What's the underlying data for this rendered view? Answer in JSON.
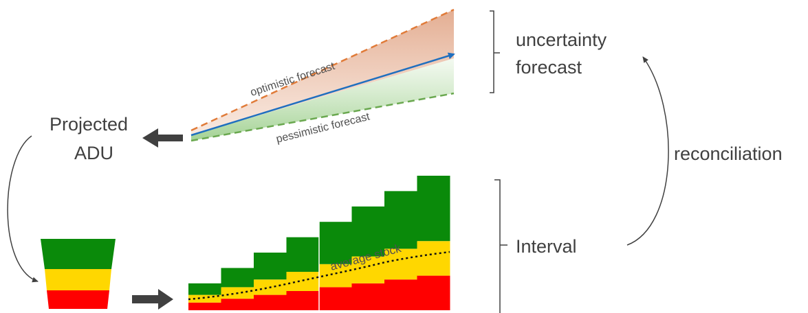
{
  "forecast": {
    "optimistic_label": "optimistic forecast",
    "pessimistic_label": "pessimistic forecast",
    "colors": {
      "optimistic": "#e07b39",
      "mean": "#1f6fbf",
      "pessimistic": "#6aa84f",
      "upper_fill": "#e8b49a",
      "lower_fill": "#b9ddb0"
    }
  },
  "labels": {
    "uncertainty_line1": "uncertainty",
    "uncertainty_line2": "forecast",
    "projected_line1": "Projected",
    "projected_line2": "ADU",
    "reconciliation": "reconciliation",
    "interval": "Interval",
    "average_stock": "average stock"
  },
  "zones": {
    "colors": {
      "green": "#0a8a0a",
      "yellow": "#ffd700",
      "red": "#ff0000"
    },
    "steps": [
      {
        "red": 1,
        "yellow": 1,
        "green": 1.5
      },
      {
        "red": 1.5,
        "yellow": 1.5,
        "green": 2.5
      },
      {
        "red": 2,
        "yellow": 2,
        "green": 3.5
      },
      {
        "red": 2.5,
        "yellow": 2.5,
        "green": 4.5
      },
      {
        "red": 3,
        "yellow": 3,
        "green": 5.5
      },
      {
        "red": 3.5,
        "yellow": 3.5,
        "green": 6.5
      },
      {
        "red": 4,
        "yellow": 4,
        "green": 7.5
      },
      {
        "red": 4.5,
        "yellow": 4.5,
        "green": 8.5
      }
    ]
  }
}
